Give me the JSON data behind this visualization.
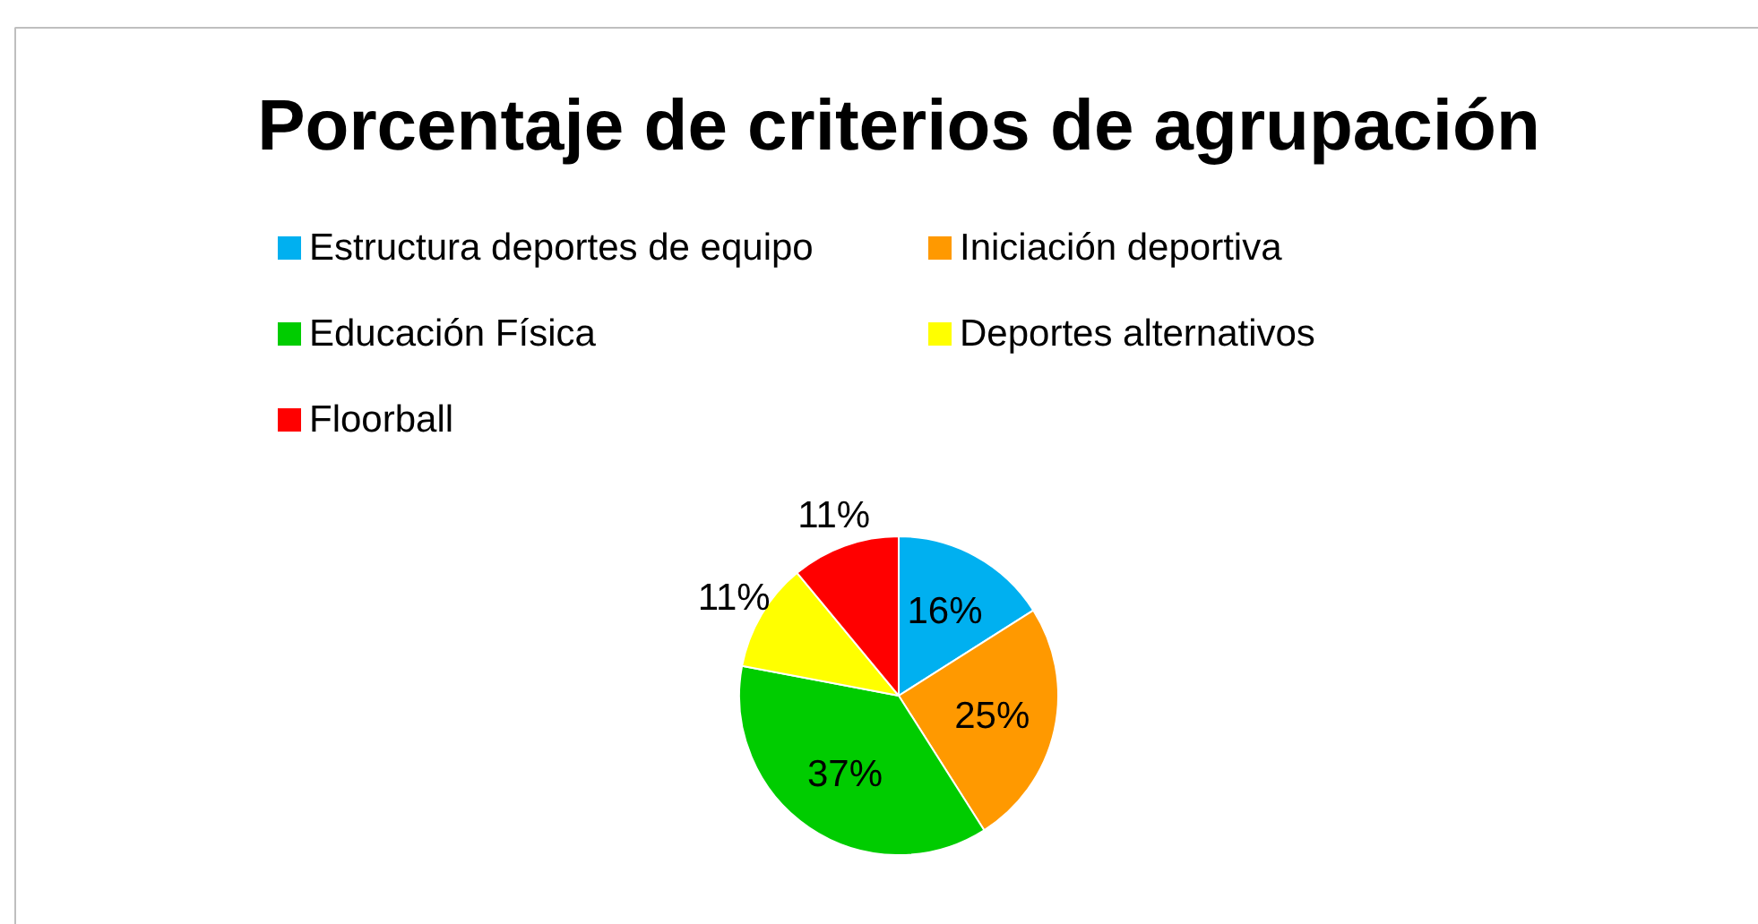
{
  "chart_data": {
    "type": "pie",
    "title": "Porcentaje de criterios de agrupación",
    "categories": [
      "Estructura deportes de equipo",
      "Iniciación deportiva",
      "Educación Física",
      "Deportes alternativos",
      "Floorball"
    ],
    "values": [
      16,
      25,
      37,
      11,
      11
    ],
    "colors": [
      "#00b0f0",
      "#ff9900",
      "#00cc00",
      "#ffff00",
      "#ff0000"
    ],
    "value_labels": [
      "16%",
      "25%",
      "37%",
      "11%",
      "11%"
    ],
    "legend": "top"
  }
}
